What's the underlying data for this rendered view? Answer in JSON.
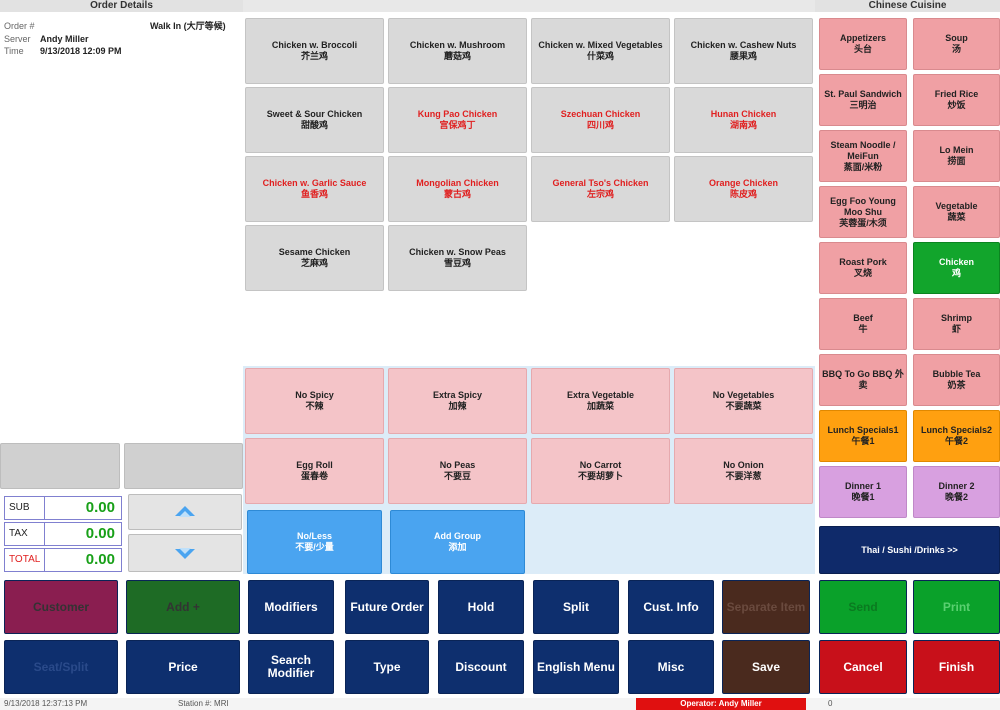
{
  "order_details": {
    "header": "Order Details",
    "order_label": "Order #",
    "order_value": "Walk In (大厅等候)",
    "server_label": "Server",
    "server_value": "Andy Miller",
    "time_label": "Time",
    "time_value": "9/13/2018 12:09 PM"
  },
  "totals": [
    {
      "label": "SUB",
      "value": "0.00"
    },
    {
      "label": "TAX",
      "value": "0.00"
    },
    {
      "label": "TOTAL",
      "value": "0.00"
    }
  ],
  "menu_items": [
    {
      "en": "Chicken w. Broccoli",
      "zh": "芥兰鸡",
      "red": false
    },
    {
      "en": "Chicken w. Mushroom",
      "zh": "蘑菇鸡",
      "red": false
    },
    {
      "en": "Chicken w. Mixed Vegetables",
      "zh": "什菜鸡",
      "red": false
    },
    {
      "en": "Chicken w. Cashew Nuts",
      "zh": "腰果鸡",
      "red": false
    },
    {
      "en": "Sweet & Sour Chicken",
      "zh": "甜酸鸡",
      "red": false
    },
    {
      "en": "Kung Pao Chicken",
      "zh": "宫保鸡丁",
      "red": true
    },
    {
      "en": "Szechuan Chicken",
      "zh": "四川鸡",
      "red": true
    },
    {
      "en": "Hunan Chicken",
      "zh": "湖南鸡",
      "red": true
    },
    {
      "en": "Chicken w. Garlic Sauce",
      "zh": "鱼香鸡",
      "red": true
    },
    {
      "en": "Mongolian Chicken",
      "zh": "蒙古鸡",
      "red": true
    },
    {
      "en": "General Tso's Chicken",
      "zh": "左宗鸡",
      "red": true
    },
    {
      "en": "Orange Chicken",
      "zh": "陈皮鸡",
      "red": true
    },
    {
      "en": "Sesame Chicken",
      "zh": "芝麻鸡",
      "red": false
    },
    {
      "en": "Chicken w. Snow Peas",
      "zh": "雪豆鸡",
      "red": false
    }
  ],
  "modifiers": [
    {
      "en": "No Spicy",
      "zh": "不辣"
    },
    {
      "en": "Extra Spicy",
      "zh": "加辣"
    },
    {
      "en": "Extra Vegetable",
      "zh": "加蔬菜"
    },
    {
      "en": "No Vegetables",
      "zh": "不要蔬菜"
    },
    {
      "en": "Egg Roll",
      "zh": "蛋春卷"
    },
    {
      "en": "No Peas",
      "zh": "不要豆"
    },
    {
      "en": "No Carrot",
      "zh": "不要胡萝卜"
    },
    {
      "en": "No Onion",
      "zh": "不要洋葱"
    }
  ],
  "mod_blue": [
    {
      "en": "No/Less",
      "zh": "不要/少量"
    },
    {
      "en": "Add Group",
      "zh": "添加"
    }
  ],
  "categories": {
    "header": "Chinese Cuisine",
    "items": [
      {
        "en": "Appetizers",
        "zh": "头台",
        "style": ""
      },
      {
        "en": "Soup",
        "zh": "汤",
        "style": ""
      },
      {
        "en": "St. Paul Sandwich",
        "zh": "三明治",
        "style": ""
      },
      {
        "en": "Fried Rice",
        "zh": "炒饭",
        "style": ""
      },
      {
        "en": "Steam Noodle / MeiFun",
        "zh": "蒸面/米粉",
        "style": ""
      },
      {
        "en": "Lo Mein",
        "zh": "捞面",
        "style": ""
      },
      {
        "en": "Egg Foo Young Moo Shu",
        "zh": "芙蓉蛋/木须",
        "style": ""
      },
      {
        "en": "Vegetable",
        "zh": "蔬菜",
        "style": ""
      },
      {
        "en": "Roast Pork",
        "zh": "叉烧",
        "style": ""
      },
      {
        "en": "Chicken",
        "zh": "鸡",
        "style": "green"
      },
      {
        "en": "Beef",
        "zh": "牛",
        "style": ""
      },
      {
        "en": "Shrimp",
        "zh": "虾",
        "style": ""
      },
      {
        "en": "BBQ To Go BBQ 外卖",
        "zh": "",
        "style": ""
      },
      {
        "en": "Bubble Tea",
        "zh": "奶茶",
        "style": ""
      },
      {
        "en": "Lunch Specials1",
        "zh": "午餐1",
        "style": "orange"
      },
      {
        "en": "Lunch Specials2",
        "zh": "午餐2",
        "style": "orange"
      },
      {
        "en": "Dinner 1",
        "zh": "晚餐1",
        "style": "purple"
      },
      {
        "en": "Dinner 2",
        "zh": "晚餐2",
        "style": "purple"
      }
    ],
    "more": "Thai / Sushi /Drinks >>"
  },
  "actions": {
    "row1": [
      {
        "label": "Customer",
        "style": "maroon"
      },
      {
        "label": "Add +",
        "style": "dgreen"
      },
      {
        "label": "Modifiers",
        "style": ""
      },
      {
        "label": "Future Order",
        "style": ""
      },
      {
        "label": "Hold",
        "style": ""
      },
      {
        "label": "Split",
        "style": ""
      },
      {
        "label": "Cust. Info",
        "style": ""
      },
      {
        "label": "Separate Item",
        "style": "brown dim"
      },
      {
        "label": "Send",
        "style": "green"
      },
      {
        "label": "Print",
        "style": "green2"
      }
    ],
    "row2": [
      {
        "label": "Seat/Split",
        "style": "navyblack"
      },
      {
        "label": "Price",
        "style": ""
      },
      {
        "label": "Search Modifier",
        "style": ""
      },
      {
        "label": "Type",
        "style": ""
      },
      {
        "label": "Discount",
        "style": ""
      },
      {
        "label": "English Menu",
        "style": ""
      },
      {
        "label": "Misc",
        "style": ""
      },
      {
        "label": "Save",
        "style": "brown"
      },
      {
        "label": "Cancel",
        "style": "red"
      },
      {
        "label": "Finish",
        "style": "red2"
      }
    ]
  },
  "status": {
    "datetime": "9/13/2018 12:37:13 PM",
    "station": "Station #: MRI",
    "operator": "Operator: Andy Miller",
    "extra": "0"
  },
  "colors": {
    "accent_red": "#e02020",
    "total_green": "#18a018",
    "navy": "#0e2f6e"
  }
}
